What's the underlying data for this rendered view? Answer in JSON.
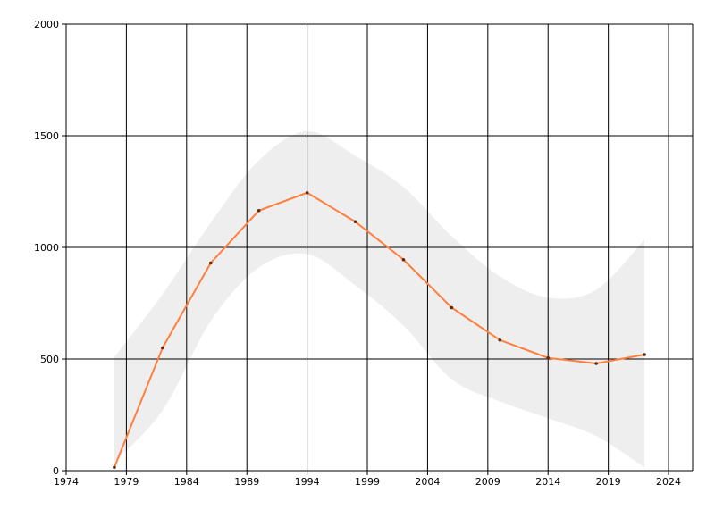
{
  "chart_data": {
    "type": "line",
    "x": [
      1978,
      1982,
      1986,
      1990,
      1994,
      1998,
      2002,
      2006,
      2010,
      2014,
      2018,
      2022
    ],
    "series": [
      {
        "color": "#ff7f3f",
        "values": [
          15,
          550,
          930,
          1165,
          1245,
          1115,
          945,
          730,
          585,
          505,
          480,
          520
        ]
      }
    ],
    "band": {
      "color": "#eeeeee",
      "upper": [
        510,
        790,
        1110,
        1390,
        1520,
        1410,
        1270,
        1050,
        870,
        775,
        810,
        1035
      ],
      "lower": [
        40,
        270,
        670,
        910,
        970,
        830,
        650,
        410,
        310,
        235,
        155,
        15
      ]
    },
    "xlim": [
      1974,
      2026
    ],
    "xticks": [
      1974,
      1979,
      1984,
      1989,
      1994,
      1999,
      2004,
      2009,
      2014,
      2019,
      2024
    ],
    "ylim": [
      0,
      2000
    ],
    "yticks": [
      0,
      500,
      1000,
      1500,
      2000
    ],
    "grid": true
  }
}
